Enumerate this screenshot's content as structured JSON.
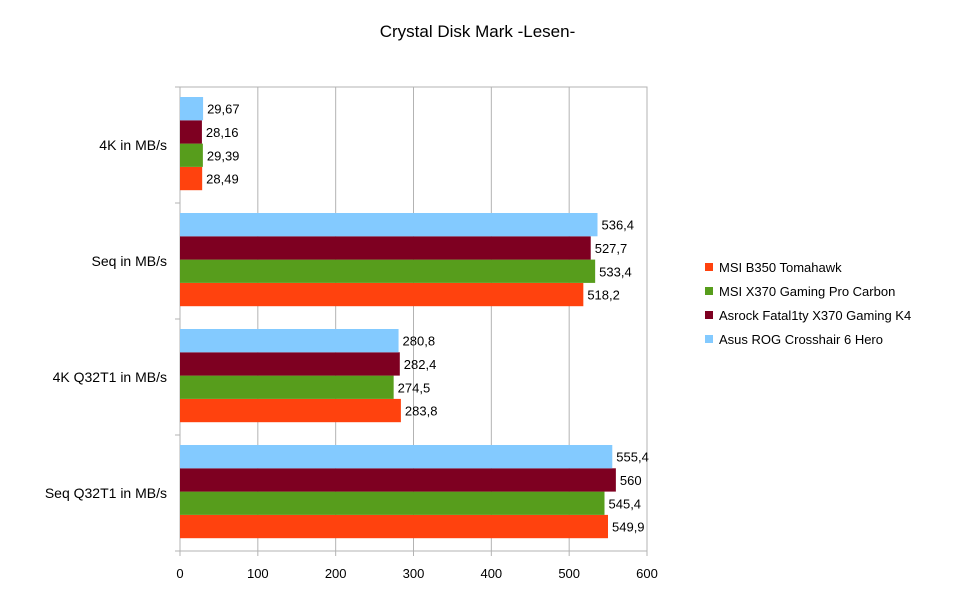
{
  "chart_data": {
    "type": "bar",
    "orientation": "horizontal",
    "title": "Crystal Disk Mark -Lesen-",
    "xlabel": "",
    "ylabel": "",
    "xlim": [
      0,
      600
    ],
    "x_ticks": [
      0,
      100,
      200,
      300,
      400,
      500,
      600
    ],
    "grid": true,
    "legend_position": "right",
    "categories": [
      "4K in MB/s",
      "Seq in MB/s",
      "4K Q32T1 in MB/s",
      "Seq Q32T1 in MB/s"
    ],
    "series": [
      {
        "name": "MSI B350 Tomahawk",
        "color": "#ff420e",
        "values": [
          28.49,
          518.2,
          283.8,
          549.9
        ],
        "labels": [
          "28,49",
          "518,2",
          "283,8",
          "549,9"
        ]
      },
      {
        "name": "MSI X370 Gaming Pro Carbon",
        "color": "#579d1c",
        "values": [
          29.39,
          533.4,
          274.5,
          545.4
        ],
        "labels": [
          "29,39",
          "533,4",
          "274,5",
          "545,4"
        ]
      },
      {
        "name": "Asrock Fatal1ty X370 Gaming K4",
        "color": "#7e0021",
        "values": [
          28.16,
          527.7,
          282.4,
          560
        ],
        "labels": [
          "28,16",
          "527,7",
          "282,4",
          "560"
        ]
      },
      {
        "name": "Asus ROG Crosshair 6 Hero",
        "color": "#83caff",
        "values": [
          29.67,
          536.4,
          280.8,
          555.4
        ],
        "labels": [
          "29,67",
          "536,4",
          "280,8",
          "555,4"
        ]
      }
    ]
  }
}
